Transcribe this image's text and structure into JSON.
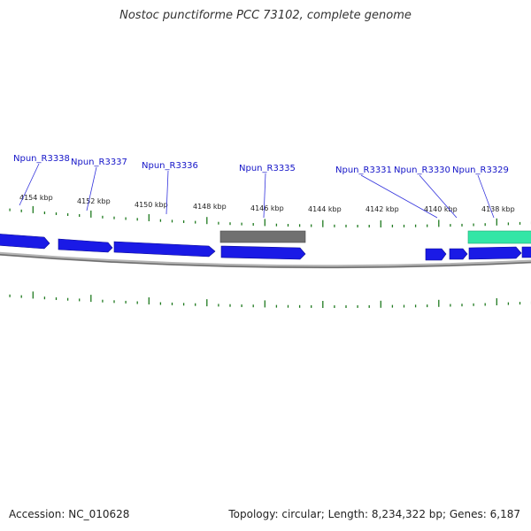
{
  "title": "Nostoc punctiforme PCC 73102, complete genome",
  "accession": "Accession: NC_010628",
  "summary": "Topology: circular; Length: 8,234,322 bp; Genes: 6,187",
  "colors": {
    "forward_gene": "#1a1ae6",
    "reverse_gene": "#1a1ae6",
    "rna_gene": "#707070",
    "highlight_gene": "#33e6a6",
    "backbone": "#8c8c8c",
    "tick": "#1f7a1f",
    "label_line": "#3333dd"
  },
  "tick_labels": [
    "4154 kbp",
    "4152 kbp",
    "4150 kbp",
    "4148 kbp",
    "4146 kbp",
    "4144 kbp",
    "4142 kbp",
    "4140 kbp",
    "4138 kbp"
  ],
  "gene_labels": [
    "Npun_R3338",
    "Npun_R3337",
    "Npun_R3336",
    "Npun_R3335",
    "Npun_R3331",
    "Npun_R3330",
    "Npun_R3329"
  ]
}
